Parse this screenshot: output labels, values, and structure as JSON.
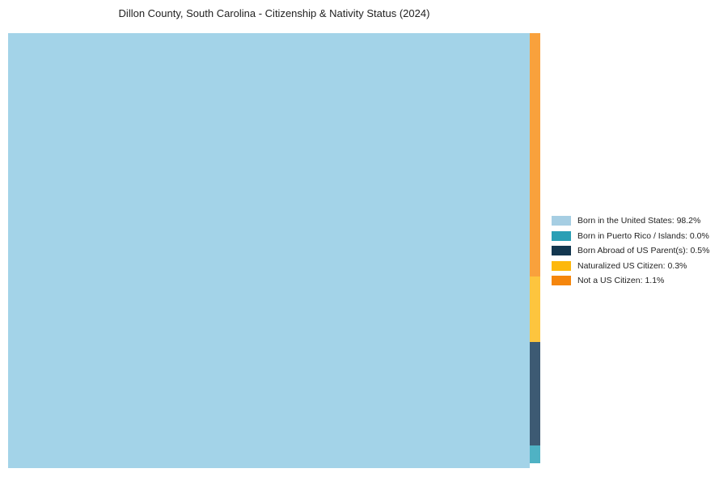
{
  "title": "Dillon County, South Carolina - Citizenship & Nativity Status (2024)",
  "chart_data": {
    "type": "treemap",
    "title": "Dillon County, South Carolina - Citizenship & Nativity Status (2024)",
    "categories": [
      "Born in the United States",
      "Born in Puerto Rico / Islands",
      "Born Abroad of US Parent(s)",
      "Naturalized US Citizen",
      "Not a US Citizen"
    ],
    "values": [
      98.2,
      0.0,
      0.5,
      0.3,
      1.1
    ],
    "unit": "%",
    "legend_position": "right",
    "background": "#ffffff"
  },
  "treemap": {
    "segments": [
      {
        "name": "born-in-us",
        "label": "Born in the United States",
        "value": 98.2,
        "color": "#a3d3e8"
      },
      {
        "name": "not-a-us-citizen",
        "label": "Not a US Citizen",
        "value": 1.1,
        "color": "#f9a13c"
      },
      {
        "name": "naturalized-us-citizen",
        "label": "Naturalized US Citizen",
        "value": 0.3,
        "color": "#fdc53e"
      },
      {
        "name": "born-abroad-us-parents",
        "label": "Born Abroad of US Parent(s)",
        "value": 0.5,
        "color": "#3d5a73"
      },
      {
        "name": "born-in-puerto-rico",
        "label": "Born in Puerto Rico / Islands",
        "value": 0.0,
        "color": "#4fb2c4"
      }
    ]
  },
  "legend": {
    "items": [
      {
        "label": "Born in the United States: 98.2%",
        "color": "#a6cee3"
      },
      {
        "label": "Born in Puerto Rico / Islands: 0.0%",
        "color": "#2a9fb5"
      },
      {
        "label": "Born Abroad of US Parent(s): 0.5%",
        "color": "#13374f"
      },
      {
        "label": "Naturalized US Citizen: 0.3%",
        "color": "#fdb80d"
      },
      {
        "label": "Not a US Citizen: 1.1%",
        "color": "#f5860d"
      }
    ]
  }
}
